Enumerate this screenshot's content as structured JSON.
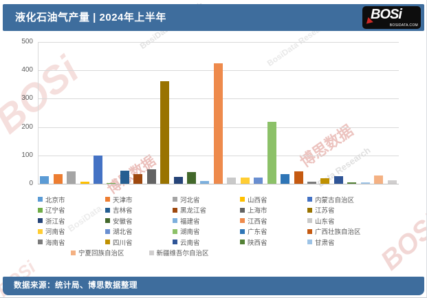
{
  "header": {
    "title": "液化石油气产量 | 2024年上半年",
    "logo": {
      "text": "BOSi",
      "subtext": "BOSIDATA.COM"
    }
  },
  "footer": {
    "source": "数据来源：统计局、博思数据整理"
  },
  "watermarks": [
    {
      "text": "BOSi"
    },
    {
      "text": "博思数据"
    },
    {
      "text": "博思数据"
    },
    {
      "text": "BosiData Research"
    },
    {
      "text": "Data Research"
    },
    {
      "text": "BOSi"
    },
    {
      "text": "BosiData"
    },
    {
      "text": "BOSi"
    },
    {
      "text": "BosiData Research"
    }
  ],
  "chart_data": {
    "type": "bar",
    "title": "液化石油气产量 | 2024年上半年",
    "xlabel": "",
    "ylabel": "",
    "ylim": [
      0,
      500
    ],
    "yticks": [
      0,
      100,
      200,
      300,
      400,
      500
    ],
    "grid": true,
    "legend_position": "bottom",
    "series": [
      {
        "name": "北京市",
        "value": 27,
        "color": "#5B9BD5"
      },
      {
        "name": "天津市",
        "value": 35,
        "color": "#ED7D31"
      },
      {
        "name": "河北省",
        "value": 43,
        "color": "#A5A5A5"
      },
      {
        "name": "山西省",
        "value": 8,
        "color": "#FFC000"
      },
      {
        "name": "内蒙古自治区",
        "value": 99,
        "color": "#4472C4"
      },
      {
        "name": "辽宁省",
        "value": 2,
        "color": "#70AD47"
      },
      {
        "name": "吉林省",
        "value": 45,
        "color": "#255E91"
      },
      {
        "name": "黑龙江省",
        "value": 34,
        "color": "#9E480E"
      },
      {
        "name": "上海市",
        "value": 52,
        "color": "#636363"
      },
      {
        "name": "江苏省",
        "value": 362,
        "color": "#997300"
      },
      {
        "name": "浙江省",
        "value": 24,
        "color": "#264478"
      },
      {
        "name": "安徽省",
        "value": 41,
        "color": "#43682B"
      },
      {
        "name": "福建省",
        "value": 10,
        "color": "#7CAFDD"
      },
      {
        "name": "江西省",
        "value": 426,
        "color": "#EE8A4C"
      },
      {
        "name": "山东省",
        "value": 23,
        "color": "#C9C9C9"
      },
      {
        "name": "河南省",
        "value": 21,
        "color": "#FFCD33"
      },
      {
        "name": "湖北省",
        "value": 23,
        "color": "#698ED0"
      },
      {
        "name": "湖南省",
        "value": 218,
        "color": "#8CC168"
      },
      {
        "name": "广东省",
        "value": 34,
        "color": "#2E75B6"
      },
      {
        "name": "广西壮族自治区",
        "value": 44,
        "color": "#C55A11"
      },
      {
        "name": "海南省",
        "value": 7,
        "color": "#7B7B7B"
      },
      {
        "name": "四川省",
        "value": 20,
        "color": "#BF9000"
      },
      {
        "name": "云南省",
        "value": 27,
        "color": "#2F5597"
      },
      {
        "name": "陕西省",
        "value": 5,
        "color": "#538135"
      },
      {
        "name": "甘肃省",
        "value": 4,
        "color": "#9DC3E6"
      },
      {
        "name": "宁夏回族自治区",
        "value": 30,
        "color": "#F4B183"
      },
      {
        "name": "新疆维吾尔自治区",
        "value": 11,
        "color": "#D0CECE"
      }
    ]
  }
}
